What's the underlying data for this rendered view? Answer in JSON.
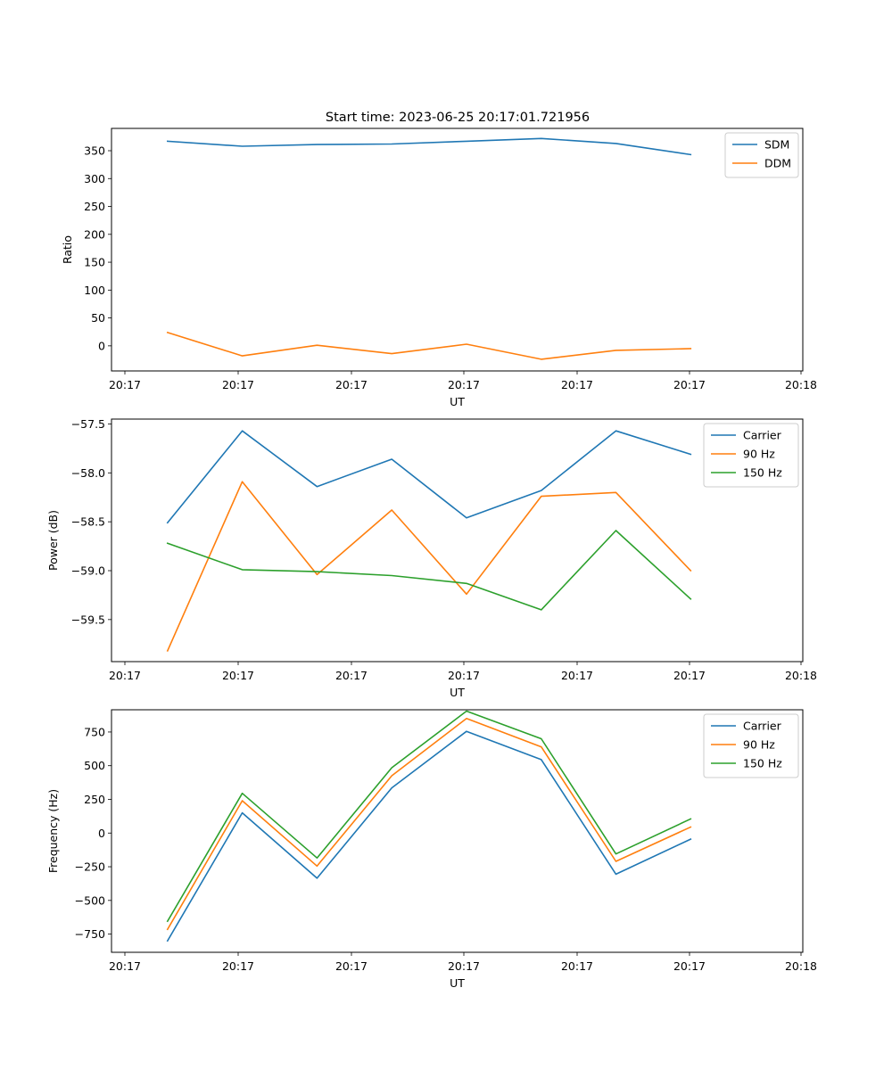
{
  "figure": {
    "title": "Start time: 2023-06-25 20:17:01.721956"
  },
  "chart_data": [
    {
      "type": "line",
      "title": "Start time: 2023-06-25 20:17:01.721956",
      "xlabel": "UT",
      "ylabel": "Ratio",
      "x_tick_labels": [
        "20:17",
        "20:17",
        "20:17",
        "20:17",
        "20:17",
        "20:17",
        "20:17"
      ],
      "x_tick_labels_last": "20:18",
      "x": [
        1,
        2,
        3,
        4,
        5,
        6,
        7,
        8
      ],
      "xlim": [
        0.25,
        9.5
      ],
      "ylim": [
        -45,
        390
      ],
      "yticks": [
        0,
        50,
        100,
        150,
        200,
        250,
        300,
        350
      ],
      "legend": "top-right",
      "series": [
        {
          "name": "SDM",
          "color": "#1f77b4",
          "values": [
            367,
            358,
            361,
            362,
            367,
            372,
            363,
            343
          ]
        },
        {
          "name": "DDM",
          "color": "#ff7f0e",
          "values": [
            24,
            -18,
            1,
            -14,
            3,
            -24,
            -8,
            -5
          ]
        }
      ]
    },
    {
      "type": "line",
      "xlabel": "UT",
      "ylabel": "Power (dB)",
      "x_tick_labels": [
        "20:17",
        "20:17",
        "20:17",
        "20:17",
        "20:17",
        "20:17",
        "20:17"
      ],
      "x_tick_labels_last": "20:18",
      "x": [
        1,
        2,
        3,
        4,
        5,
        6,
        7,
        8
      ],
      "xlim": [
        0.25,
        9.5
      ],
      "ylim": [
        -59.93,
        -57.45
      ],
      "yticks": [
        -57.5,
        -58.0,
        -58.5,
        -59.0,
        -59.5
      ],
      "ytick_labels": [
        "−57.5",
        "−58.0",
        "−58.5",
        "−59.0",
        "−59.5"
      ],
      "legend": "top-right",
      "series": [
        {
          "name": "Carrier",
          "color": "#1f77b4",
          "values": [
            -58.51,
            -57.57,
            -58.14,
            -57.86,
            -58.46,
            -58.18,
            -57.57,
            -57.81
          ]
        },
        {
          "name": "90 Hz",
          "color": "#ff7f0e",
          "values": [
            -59.82,
            -58.09,
            -59.04,
            -58.38,
            -59.24,
            -58.24,
            -58.2,
            -59.0
          ]
        },
        {
          "name": "150 Hz",
          "color": "#2ca02c",
          "values": [
            -58.72,
            -58.99,
            -59.01,
            -59.05,
            -59.13,
            -59.4,
            -58.59,
            -59.29
          ]
        }
      ]
    },
    {
      "type": "line",
      "xlabel": "UT",
      "ylabel": "Frequency (Hz)",
      "x_tick_labels": [
        "20:17",
        "20:17",
        "20:17",
        "20:17",
        "20:17",
        "20:17",
        "20:17"
      ],
      "x_tick_labels_last": "20:18",
      "x": [
        1,
        2,
        3,
        4,
        5,
        6,
        7,
        8
      ],
      "xlim": [
        0.25,
        9.5
      ],
      "ylim": [
        -885,
        915
      ],
      "yticks": [
        -750,
        -500,
        -250,
        0,
        250,
        500,
        750
      ],
      "ytick_labels": [
        "−750",
        "−500",
        "−250",
        "0",
        "250",
        "500",
        "750"
      ],
      "legend": "top-right",
      "series": [
        {
          "name": "Carrier",
          "color": "#1f77b4",
          "values": [
            -800,
            150,
            -335,
            335,
            755,
            545,
            -305,
            -45
          ]
        },
        {
          "name": "90 Hz",
          "color": "#ff7f0e",
          "values": [
            -715,
            240,
            -245,
            425,
            850,
            640,
            -210,
            45
          ]
        },
        {
          "name": "150 Hz",
          "color": "#2ca02c",
          "values": [
            -655,
            295,
            -185,
            485,
            905,
            700,
            -155,
            105
          ]
        }
      ]
    }
  ]
}
